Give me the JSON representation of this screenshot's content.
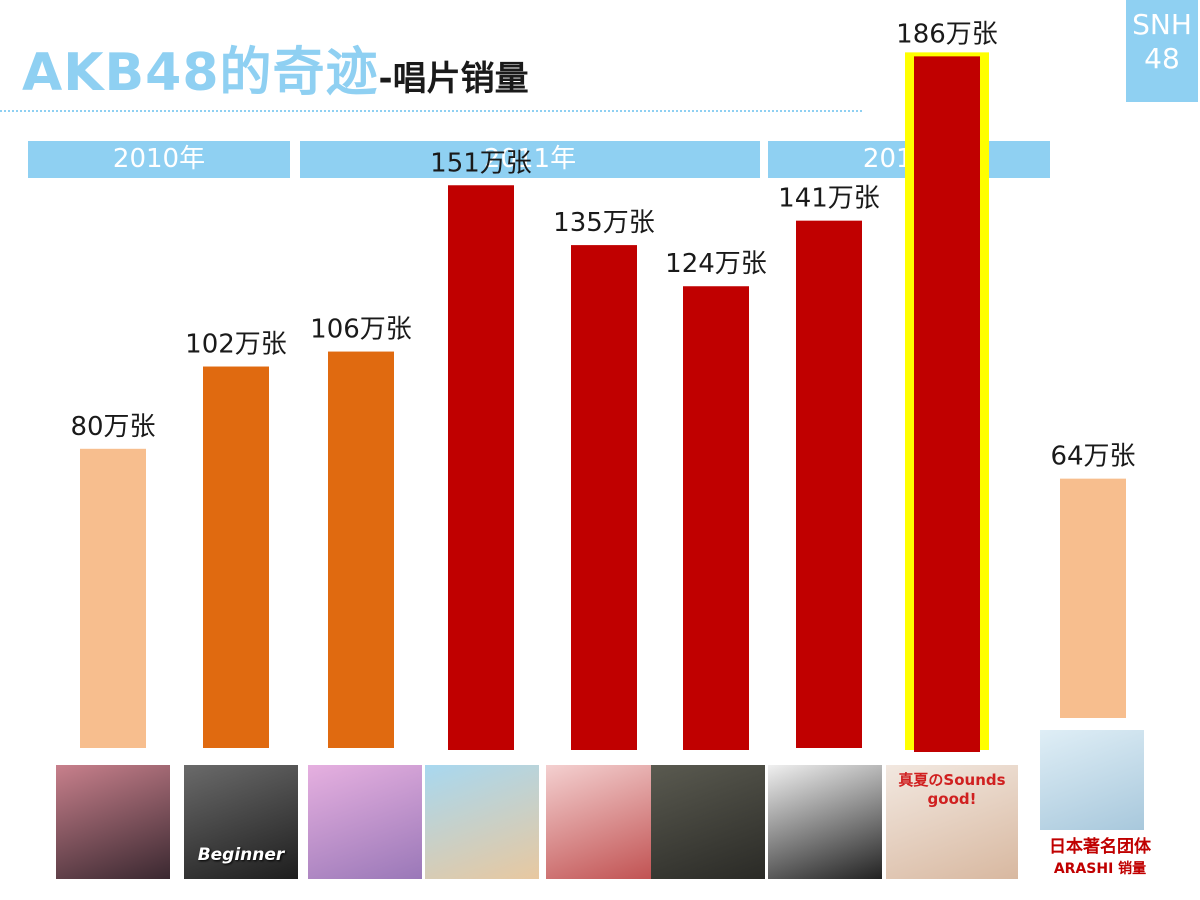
{
  "title": {
    "main": "AKB48的奇迹",
    "sub": "-唱片销量"
  },
  "logo": {
    "line1": "SNH",
    "line2": "48"
  },
  "colors": {
    "accent": "#8fd0f2",
    "peach": "#f7be8e",
    "orange": "#e06a10",
    "red": "#c00000",
    "highlight": "#ffff00"
  },
  "year_bands": [
    "2010年",
    "2011年",
    "2012年"
  ],
  "chart_data": {
    "type": "bar",
    "title": "",
    "xlabel": "",
    "ylabel": "",
    "unit": "万张",
    "ylim": [
      0,
      190
    ],
    "categories": [
      "",
      "Beginner",
      "",
      "",
      "",
      "",
      "",
      "真夏のSounds good!",
      "ARASHI"
    ],
    "values": [
      80,
      102,
      106,
      151,
      135,
      124,
      141,
      186,
      64
    ],
    "data_labels": [
      "80万张",
      "102万张",
      "106万张",
      "151万张",
      "135万张",
      "124万张",
      "141万张",
      "186万张",
      "64万张"
    ],
    "groups": [
      {
        "label": "2010年",
        "bars": [
          0,
          1
        ]
      },
      {
        "label": "2011年",
        "bars": [
          2,
          3,
          4,
          5
        ]
      },
      {
        "label": "2012年",
        "bars": [
          6,
          7
        ]
      }
    ],
    "bar_colors": [
      "peach",
      "orange",
      "orange",
      "red",
      "red",
      "red",
      "red",
      "red",
      "peach"
    ],
    "highlighted_bar": 7,
    "grid": false,
    "legend": "none"
  },
  "thumbs": [
    {
      "caption": "",
      "colors": [
        "#c8808c",
        "#3a2830"
      ]
    },
    {
      "caption": "Beginner",
      "colors": [
        "#6a6a6a",
        "#1e1e1e"
      ]
    },
    {
      "caption": "",
      "colors": [
        "#e6b0e0",
        "#9a78b8"
      ]
    },
    {
      "caption": "",
      "colors": [
        "#a8d8f0",
        "#e8c8a0"
      ]
    },
    {
      "caption": "",
      "colors": [
        "#f4d0d0",
        "#c05050"
      ]
    },
    {
      "caption": "",
      "colors": [
        "#5a5a50",
        "#2a2a26"
      ]
    },
    {
      "caption": "",
      "colors": [
        "#f0f0f0",
        "#222222"
      ]
    },
    {
      "caption": "真夏のSounds good!",
      "colors": [
        "#f2e8e0",
        "#d8b8a0"
      ]
    },
    {
      "caption": "",
      "colors": [
        "#dfeef6",
        "#a8c8dc"
      ]
    }
  ],
  "arashi_note": {
    "line1": "日本著名团体",
    "line2": "ARASHI 销量"
  }
}
